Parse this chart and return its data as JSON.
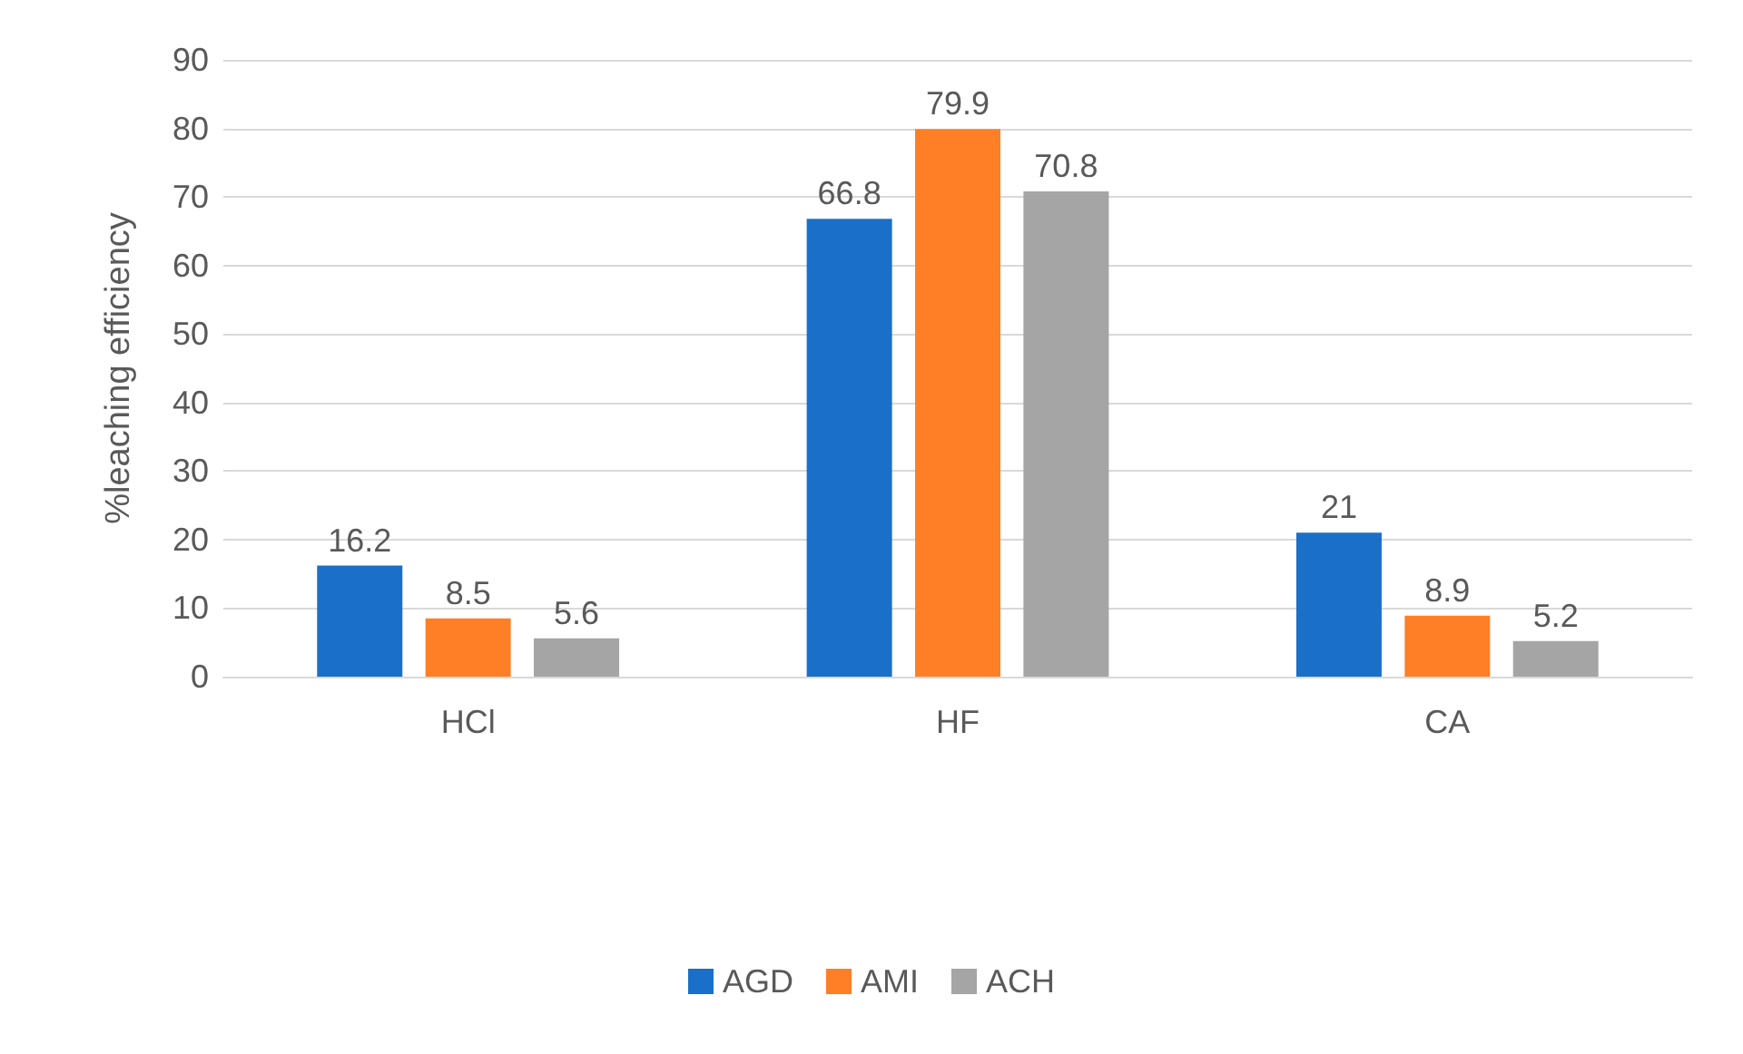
{
  "chart_data": {
    "type": "bar",
    "ylabel": "%leaching efficiency",
    "categories": [
      "HCl",
      "HF",
      "CA"
    ],
    "series": [
      {
        "name": "AGD",
        "color": "#1a70c8",
        "values": [
          16.2,
          66.8,
          21
        ]
      },
      {
        "name": "AMI",
        "color": "#ff7f27",
        "values": [
          8.5,
          79.9,
          8.9
        ]
      },
      {
        "name": "ACH",
        "color": "#a5a5a5",
        "values": [
          5.6,
          70.8,
          5.2
        ]
      }
    ],
    "ylim": [
      0,
      90
    ],
    "yticks": [
      0,
      10,
      20,
      30,
      40,
      50,
      60,
      70,
      80,
      90
    ],
    "grid": "y",
    "legend": "bottom",
    "data_labels": true
  }
}
